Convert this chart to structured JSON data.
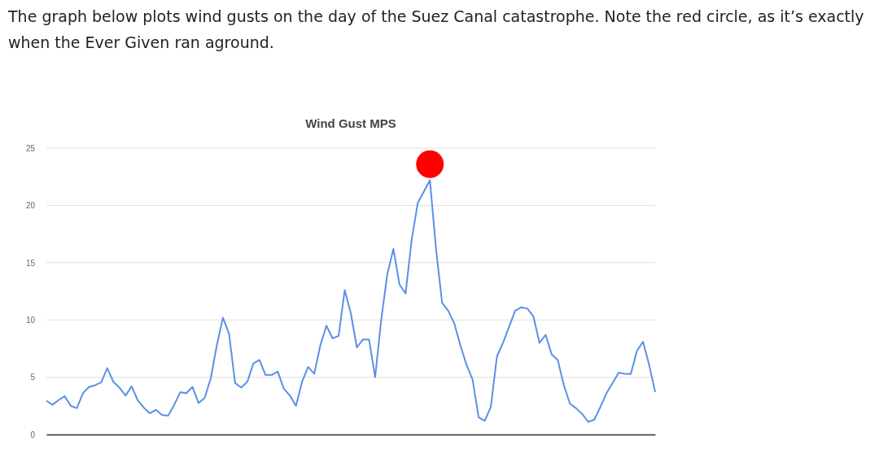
{
  "chart_data": {
    "type": "line",
    "title": "Wind Gust MPS",
    "annotations": [
      "The graph below plots wind gusts on the day of the Suez Canal catastrophe. Note the red circle, as it’s exactly when the Ever Given ran aground."
    ],
    "categories": [
      null,
      null,
      null,
      null,
      null,
      null,
      null,
      null,
      null,
      null,
      null,
      null,
      null,
      null,
      null,
      null,
      null,
      null,
      null,
      null,
      null,
      null,
      null,
      null,
      null,
      null,
      null,
      null,
      null,
      null,
      null,
      null,
      null,
      null,
      null,
      null,
      null,
      null,
      null,
      null,
      null,
      null,
      null,
      null,
      null,
      null,
      null,
      null,
      null,
      null,
      null,
      null,
      null,
      null,
      null,
      null,
      null,
      null,
      null,
      null,
      null,
      null,
      null,
      null,
      null,
      null,
      null,
      null,
      null,
      null,
      null,
      null,
      null,
      null,
      null,
      null,
      null,
      null,
      null,
      null,
      null,
      null,
      null,
      null,
      null,
      null,
      null,
      null,
      null,
      null,
      null,
      null,
      null,
      null,
      null,
      null,
      null,
      null,
      null,
      null,
      null
    ],
    "ylim": [
      0,
      25
    ],
    "yticks": [
      0,
      5,
      10,
      15,
      20,
      25
    ],
    "grid": "y",
    "tick_labels": "y",
    "series": [
      {
        "color": "#5b8fe6",
        "values": [
          2.95,
          2.6,
          3.0,
          3.35,
          2.5,
          2.3,
          3.6,
          4.15,
          4.3,
          4.55,
          5.8,
          4.6,
          4.1,
          3.4,
          4.2,
          3.0,
          2.35,
          1.85,
          2.15,
          1.7,
          1.65,
          2.6,
          3.7,
          3.6,
          4.15,
          2.75,
          3.2,
          4.9,
          7.8,
          10.2,
          8.8,
          4.5,
          4.1,
          4.6,
          6.2,
          6.5,
          5.2,
          5.2,
          5.5,
          4.0,
          3.4,
          2.5,
          4.6,
          5.9,
          5.3,
          7.8,
          9.5,
          8.4,
          8.6,
          12.6,
          10.6,
          7.6,
          8.3,
          8.3,
          5.0,
          10.0,
          14.0,
          16.2,
          13.1,
          12.3,
          17.0,
          20.2,
          21.2,
          22.2,
          16.2,
          11.5,
          10.8,
          9.7,
          7.8,
          6.1,
          4.8,
          1.5,
          1.2,
          2.4,
          6.8,
          8.0,
          9.4,
          10.8,
          11.1,
          11.0,
          10.3,
          8.0,
          8.7,
          7.0,
          6.5,
          4.3,
          2.7,
          2.3,
          1.8,
          1.1,
          1.3,
          2.4,
          3.6,
          4.5,
          5.4,
          5.3,
          5.3,
          7.3,
          8.1,
          6.1,
          3.7
        ]
      },
      {
        "type": "scatter",
        "color": "#ff0000",
        "marker": "circle",
        "values": [
          null,
          null,
          null,
          null,
          null,
          null,
          null,
          null,
          null,
          null,
          null,
          null,
          null,
          null,
          null,
          null,
          null,
          null,
          null,
          null,
          null,
          null,
          null,
          null,
          null,
          null,
          null,
          null,
          null,
          null,
          null,
          null,
          null,
          null,
          null,
          null,
          null,
          null,
          null,
          null,
          null,
          null,
          null,
          null,
          null,
          null,
          null,
          null,
          null,
          null,
          null,
          null,
          null,
          null,
          null,
          null,
          null,
          null,
          null,
          null,
          null,
          null,
          null,
          23.6,
          null,
          null,
          null,
          null,
          null,
          null,
          null,
          null,
          null,
          null,
          null,
          null,
          null,
          null,
          null,
          null,
          null,
          null,
          null,
          null,
          null,
          null,
          null,
          null,
          null,
          null,
          null,
          null,
          null,
          null,
          null,
          null,
          null,
          null,
          null,
          null,
          null
        ]
      }
    ]
  }
}
